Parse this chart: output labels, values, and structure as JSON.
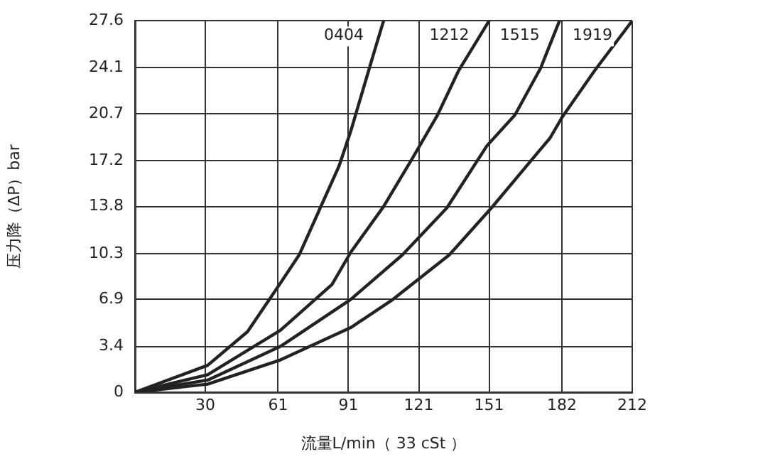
{
  "chart_data": {
    "type": "line",
    "xlabel": "流量L/min（ 33 cSt ）",
    "ylabel": "压力降（ΔP）bar",
    "xlim": [
      0,
      212
    ],
    "xticks": [
      30,
      61,
      91,
      121,
      151,
      182,
      212
    ],
    "ylim": [
      0,
      27.6
    ],
    "yticks": [
      0,
      3.4,
      6.9,
      10.3,
      13.8,
      17.2,
      20.7,
      24.1,
      27.6
    ],
    "grid": true,
    "legend": false,
    "marker": "none",
    "line_style": "solid",
    "series": [
      {
        "name": "0404",
        "color": "#222222",
        "x": [
          0,
          31,
          48,
          62,
          70,
          79,
          87,
          92,
          102,
          106
        ],
        "values": [
          0,
          2,
          4.5,
          8.1,
          10.2,
          13.7,
          16.8,
          19.4,
          25.3,
          27.6
        ]
      },
      {
        "name": "1212",
        "color": "#222222",
        "x": [
          0,
          31,
          62,
          84,
          92,
          106,
          118,
          129,
          138,
          151
        ],
        "values": [
          0,
          1.3,
          4.6,
          8,
          10.4,
          13.8,
          17.3,
          20.6,
          23.9,
          27.6
        ]
      },
      {
        "name": "1515",
        "color": "#222222",
        "x": [
          0,
          31,
          62,
          92,
          114,
          133,
          150,
          162,
          173,
          181
        ],
        "values": [
          0,
          0.9,
          3.4,
          6.9,
          10.2,
          13.7,
          18.3,
          20.6,
          24.1,
          27.6
        ]
      },
      {
        "name": "1919",
        "color": "#222222",
        "x": [
          0,
          31,
          62,
          92,
          110,
          134,
          152,
          177,
          182,
          196,
          212
        ],
        "values": [
          0,
          0.6,
          2.4,
          4.8,
          6.9,
          10.2,
          13.7,
          18.9,
          20.4,
          23.9,
          27.6
        ]
      }
    ]
  }
}
